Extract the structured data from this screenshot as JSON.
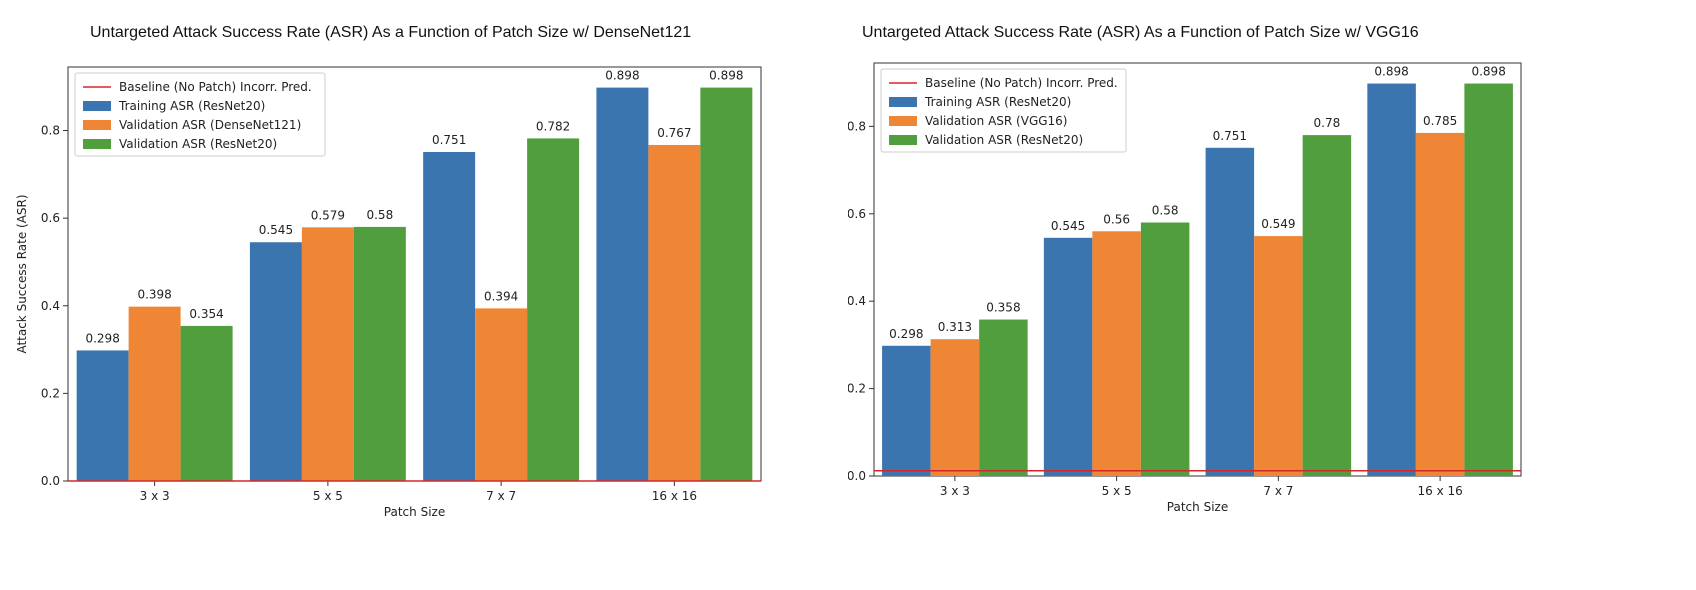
{
  "chart_data": [
    {
      "type": "bar",
      "title": "Untargeted Attack Success Rate (ASR) As a Function of Patch Size w/ DenseNet121",
      "xlabel": "Patch Size",
      "ylabel": "Attack Success Rate (ASR)",
      "categories": [
        "3 x 3",
        "5 x 5",
        "7 x 7",
        "16 x 16"
      ],
      "ylim": [
        0,
        0.945
      ],
      "yticks": [
        "0.0",
        "0.2",
        "0.4",
        "0.6",
        "0.8"
      ],
      "baseline": {
        "name": "Baseline (No Patch) Incorr. Pred.",
        "value": 0.0,
        "color": "#d62728"
      },
      "series": [
        {
          "name": "Training ASR (ResNet20)",
          "color": "#3b75af",
          "values": [
            0.298,
            0.545,
            0.751,
            0.898
          ],
          "labels": [
            "0.298",
            "0.545",
            "0.751",
            "0.898"
          ]
        },
        {
          "name": "Validation ASR (DenseNet121)",
          "color": "#ef8636",
          "values": [
            0.398,
            0.579,
            0.394,
            0.767
          ],
          "labels": [
            "0.398",
            "0.579",
            "0.394",
            "0.767"
          ]
        },
        {
          "name": "Validation ASR (ResNet20)",
          "color": "#519e3e",
          "values": [
            0.354,
            0.58,
            0.782,
            0.898
          ],
          "labels": [
            "0.354",
            "0.58",
            "0.782",
            "0.898"
          ]
        }
      ],
      "legend": "top-left",
      "grid": false
    },
    {
      "type": "bar",
      "title": "Untargeted Attack Success Rate (ASR) As a Function of Patch Size w/ VGG16",
      "xlabel": "Patch Size",
      "ylabel": "Attack Success Rate (ASR)",
      "categories": [
        "3 x 3",
        "5 x 5",
        "7 x 7",
        "16 x 16"
      ],
      "ylim": [
        0,
        0.945
      ],
      "yticks": [
        "0.0",
        "0.2",
        "0.4",
        "0.6",
        "0.8"
      ],
      "baseline": {
        "name": "Baseline (No Patch) Incorr. Pred.",
        "value": 0.012,
        "color": "#d62728"
      },
      "series": [
        {
          "name": "Training ASR (ResNet20)",
          "color": "#3b75af",
          "values": [
            0.298,
            0.545,
            0.751,
            0.898
          ],
          "labels": [
            "0.298",
            "0.545",
            "0.751",
            "0.898"
          ]
        },
        {
          "name": "Validation ASR (VGG16)",
          "color": "#ef8636",
          "values": [
            0.313,
            0.56,
            0.549,
            0.785
          ],
          "labels": [
            "0.313",
            "0.56",
            "0.549",
            "0.785"
          ]
        },
        {
          "name": "Validation ASR (ResNet20)",
          "color": "#519e3e",
          "values": [
            0.358,
            0.58,
            0.78,
            0.898
          ],
          "labels": [
            "0.358",
            "0.58",
            "0.78",
            "0.898"
          ]
        }
      ],
      "legend": "top-left",
      "grid": false
    }
  ]
}
